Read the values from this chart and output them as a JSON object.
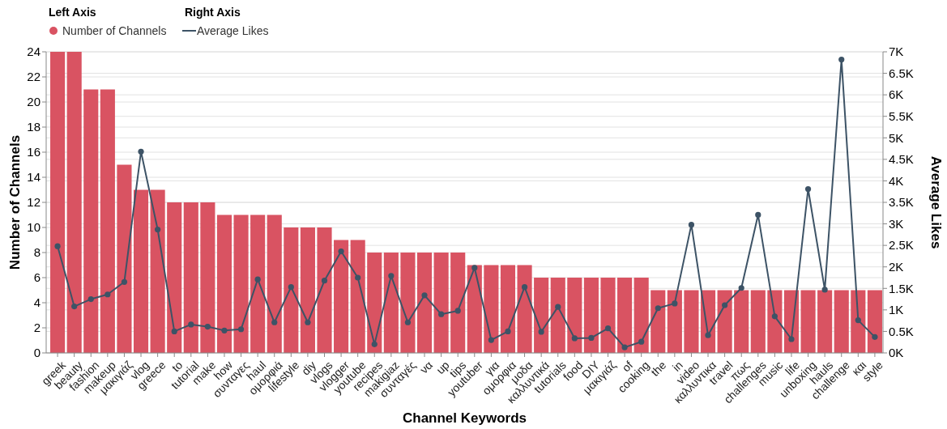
{
  "chart_data": {
    "type": "bar",
    "xlabel": "Channel Keywords",
    "ylabel": "Number of Channels",
    "y2label": "Average Likes",
    "legend_title": "Left Axis",
    "annotations": [
      "Right Axis"
    ],
    "categories": [
      "greek",
      "beauty",
      "fashion",
      "makeup",
      "μακιγιάζ",
      "vlog",
      "greece",
      "to",
      "tutorial",
      "make",
      "how",
      "συνταγες",
      "haul",
      "ομορφιά",
      "lifestyle",
      "diy",
      "vlogs",
      "vlogger",
      "youtube",
      "recipes",
      "makigiaz",
      "συνταγές",
      "να",
      "up",
      "tips",
      "youtuber",
      "για",
      "ομορφια",
      "μοδα",
      "καλλυντικά",
      "tutorials",
      "food",
      "DIY",
      "μακιγιάζ",
      "of",
      "cooking",
      "the",
      "in",
      "video",
      "καλλυντικα",
      "travel",
      "πως",
      "challenges",
      "music",
      "life",
      "unboxing",
      "hauls",
      "challenge",
      "και",
      "style"
    ],
    "series": [
      {
        "name": "Number of Channels",
        "color": "#d95362",
        "values": [
          24,
          24,
          21,
          21,
          15,
          13,
          13,
          12,
          12,
          12,
          11,
          11,
          11,
          11,
          10,
          10,
          10,
          9,
          9,
          8,
          8,
          8,
          8,
          8,
          8,
          7,
          7,
          7,
          7,
          6,
          6,
          6,
          6,
          6,
          6,
          6,
          5,
          5,
          5,
          5,
          5,
          5,
          5,
          5,
          5,
          5,
          5,
          5,
          5,
          5
        ]
      },
      {
        "name": "Average Likes",
        "type": "line",
        "axis": "y2",
        "color": "#3d5366",
        "values": [
          2480,
          1080,
          1250,
          1360,
          1650,
          4680,
          2870,
          500,
          660,
          610,
          520,
          550,
          1710,
          710,
          1530,
          710,
          1680,
          2360,
          1750,
          200,
          1790,
          710,
          1340,
          900,
          980,
          1980,
          300,
          500,
          1530,
          490,
          1070,
          340,
          350,
          570,
          130,
          260,
          1040,
          1150,
          2980,
          410,
          1110,
          1510,
          3210,
          850,
          320,
          3810,
          1470,
          6820,
          760,
          370
        ]
      }
    ],
    "ylim": [
      0,
      24
    ],
    "yticks": [
      0,
      2,
      4,
      6,
      8,
      10,
      12,
      14,
      16,
      18,
      20,
      22,
      24
    ],
    "y2lim": [
      0,
      7000
    ],
    "y2ticks": [
      {
        "value": 0,
        "label": "0K"
      },
      {
        "value": 500,
        "label": "0.5K"
      },
      {
        "value": 1000,
        "label": "1K"
      },
      {
        "value": 1500,
        "label": "1.5K"
      },
      {
        "value": 2000,
        "label": "2K"
      },
      {
        "value": 2500,
        "label": "2.5K"
      },
      {
        "value": 3000,
        "label": "3K"
      },
      {
        "value": 3500,
        "label": "3.5K"
      },
      {
        "value": 4000,
        "label": "4K"
      },
      {
        "value": 4500,
        "label": "4.5K"
      },
      {
        "value": 5000,
        "label": "5K"
      },
      {
        "value": 5500,
        "label": "5.5K"
      },
      {
        "value": 6000,
        "label": "6K"
      },
      {
        "value": 6500,
        "label": "6.5K"
      },
      {
        "value": 7000,
        "label": "7K"
      }
    ],
    "grid": "y",
    "legend": "top left",
    "marker": "circle"
  }
}
